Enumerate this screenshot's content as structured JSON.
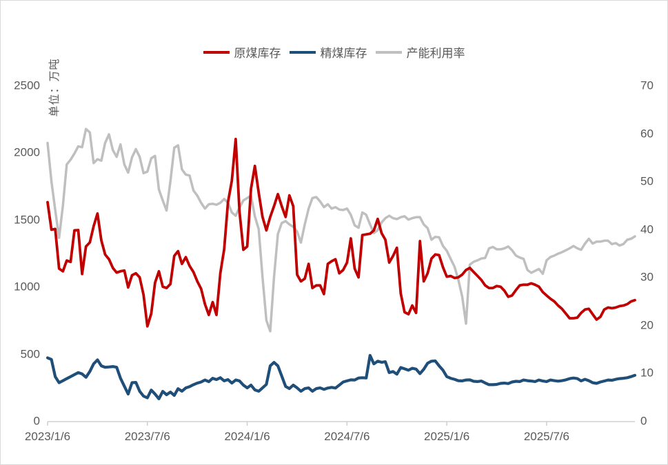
{
  "y_axis_title": "单位：万吨",
  "legend": [
    {
      "label": "原煤库存"
    },
    {
      "label": "精煤库存"
    },
    {
      "label": "产能利用率"
    }
  ],
  "left_axis": {
    "ticks": [
      0,
      500,
      1000,
      1500,
      2000,
      2500
    ],
    "min": 0,
    "max": 2500
  },
  "right_axis": {
    "ticks": [
      0,
      10,
      20,
      30,
      40,
      50,
      60,
      70
    ],
    "min": 0,
    "max": 70
  },
  "x_axis": {
    "labels": [
      "2023/1/6",
      "2023/7/6",
      "2024/1/6",
      "2024/7/6",
      "2025/1/6",
      "2025/7/6"
    ]
  },
  "colors": {
    "raw_coal": "#C00000",
    "clean_coal": "#1F4E79",
    "capacity": "#BFBFBF",
    "text": "#595959",
    "axis": "#D0D0D0",
    "background": "#FFFFFF"
  },
  "chart_data": {
    "type": "line",
    "title": "",
    "grid": false,
    "legend_position": "top",
    "x_unit": "week",
    "x_start": "2023/1/6",
    "x_tick_indices": [
      0,
      26,
      52,
      78,
      104,
      130
    ],
    "x_tick_labels": [
      "2023/1/6",
      "2023/7/6",
      "2024/1/6",
      "2024/7/6",
      "2025/1/6",
      "2025/7/6"
    ],
    "left_ylim": [
      0,
      2500
    ],
    "right_ylim": [
      0,
      70
    ],
    "left_axis_unit": "万吨",
    "right_axis_unit": "%",
    "series": [
      {
        "name": "原煤库存",
        "key": "raw-coal-inventory",
        "axis": "left",
        "color": "#C00000",
        "values": [
          1630,
          1425,
          1430,
          1135,
          1115,
          1195,
          1185,
          1420,
          1422,
          1095,
          1300,
          1330,
          1450,
          1545,
          1345,
          1240,
          1205,
          1140,
          1105,
          1115,
          1120,
          995,
          1085,
          1100,
          1070,
          940,
          705,
          800,
          1030,
          1115,
          1000,
          990,
          1020,
          1230,
          1265,
          1170,
          1220,
          1155,
          1110,
          1040,
          985,
          870,
          790,
          885,
          790,
          1100,
          1280,
          1630,
          1790,
          2100,
          1560,
          1275,
          1300,
          1730,
          1900,
          1700,
          1520,
          1420,
          1520,
          1600,
          1690,
          1600,
          1520,
          1680,
          1600,
          1090,
          1040,
          1060,
          1170,
          990,
          1010,
          1010,
          945,
          1170,
          1190,
          1205,
          1100,
          1125,
          1180,
          1360,
          1135,
          1070,
          1385,
          1390,
          1395,
          1420,
          1505,
          1400,
          1350,
          1180,
          1230,
          1290,
          950,
          810,
          795,
          860,
          805,
          1340,
          1040,
          1100,
          1210,
          1240,
          1235,
          1145,
          1075,
          1080,
          1065,
          1070,
          1090,
          1125,
          1140,
          1110,
          1080,
          1050,
          1010,
          990,
          990,
          1005,
          1000,
          970,
          925,
          935,
          975,
          1010,
          1015,
          1015,
          1025,
          1015,
          1000,
          960,
          935,
          910,
          890,
          860,
          835,
          800,
          765,
          765,
          770,
          805,
          830,
          835,
          795,
          755,
          775,
          830,
          845,
          840,
          845,
          855,
          860,
          870,
          890,
          900
        ]
      },
      {
        "name": "精煤库存",
        "key": "clean-coal-inventory",
        "axis": "left",
        "color": "#1F4E79",
        "values": [
          470,
          458,
          330,
          285,
          300,
          315,
          330,
          345,
          360,
          350,
          325,
          368,
          425,
          455,
          410,
          400,
          402,
          405,
          400,
          318,
          258,
          200,
          285,
          287,
          221,
          185,
          172,
          230,
          200,
          165,
          220,
          195,
          215,
          190,
          240,
          221,
          246,
          255,
          270,
          282,
          290,
          305,
          292,
          318,
          308,
          322,
          298,
          308,
          282,
          305,
          298,
          267,
          246,
          267,
          231,
          221,
          246,
          272,
          410,
          436,
          410,
          334,
          257,
          241,
          267,
          246,
          221,
          241,
          246,
          221,
          241,
          246,
          235,
          245,
          250,
          245,
          267,
          290,
          298,
          306,
          305,
          320,
          322,
          320,
          488,
          425,
          445,
          437,
          441,
          360,
          368,
          348,
          398,
          388,
          378,
          392,
          386,
          352,
          385,
          430,
          445,
          447,
          410,
          378,
          330,
          318,
          310,
          300,
          298,
          305,
          306,
          295,
          293,
          297,
          283,
          270,
          270,
          272,
          280,
          282,
          278,
          290,
          295,
          293,
          305,
          300,
          297,
          293,
          305,
          297,
          293,
          305,
          300,
          296,
          300,
          306,
          315,
          320,
          315,
          298,
          310,
          300,
          285,
          280,
          290,
          297,
          305,
          303,
          310,
          315,
          318,
          322,
          330,
          340
        ]
      },
      {
        "name": "产能利用率",
        "key": "capacity-utilization",
        "axis": "right",
        "color": "#BFBFBF",
        "values": [
          58,
          50,
          44,
          38.2,
          45,
          53.5,
          54.5,
          55.8,
          57.3,
          57.1,
          60.9,
          60.2,
          53.8,
          54.6,
          54.3,
          58,
          59.8,
          56.5,
          55.1,
          57.7,
          53.5,
          51.8,
          55,
          56.7,
          55.1,
          51.7,
          52,
          54.8,
          55.3,
          48.3,
          46,
          43.9,
          50,
          57,
          57.5,
          52.5,
          51.4,
          51.2,
          48.1,
          47,
          45.5,
          44.3,
          45.2,
          45.3,
          45.1,
          45.5,
          46.3,
          45.5,
          43.5,
          42.8,
          44.5,
          46,
          46.5,
          47,
          42.7,
          40,
          30,
          21,
          18.7,
          30,
          39,
          41.3,
          41.7,
          41,
          40.5,
          39.5,
          37.2,
          41,
          44.3,
          46.5,
          46.7,
          45.8,
          44.6,
          45.2,
          44.3,
          44.6,
          44.1,
          44,
          44.3,
          43,
          40.8,
          40.3,
          43.5,
          43,
          41,
          39.2,
          39.8,
          41.4,
          42.3,
          42.8,
          42.3,
          42.1,
          42.5,
          42.7,
          42,
          42.3,
          42.5,
          42.5,
          41,
          40.2,
          37.8,
          38.4,
          38.3,
          36.5,
          35.5,
          33.8,
          32.2,
          29.5,
          26,
          20.3,
          32.6,
          33.2,
          33.5,
          33.9,
          34,
          36,
          36.3,
          35.8,
          35.8,
          36,
          36.4,
          35.6,
          34.5,
          34.1,
          33.8,
          31.5,
          30.9,
          31.3,
          31.7,
          30.7,
          33.5,
          34.2,
          34.5,
          34.9,
          35.2,
          35.6,
          36,
          36.5,
          36,
          35.7,
          37,
          38,
          37,
          37.4,
          37.4,
          37.6,
          37.6,
          36.9,
          37.1,
          36.6,
          36.9,
          37.8,
          38,
          38.5
        ]
      }
    ]
  }
}
